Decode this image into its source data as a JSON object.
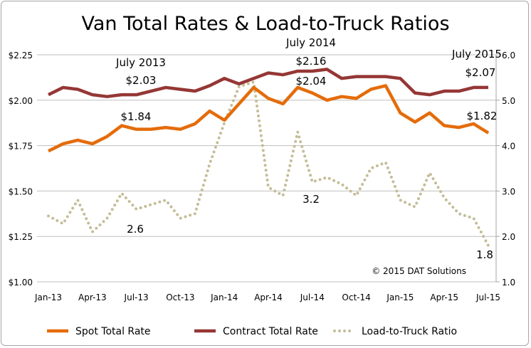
{
  "chart_data": {
    "type": "line",
    "title": "Van Total Rates & Load-to-Truck Ratios",
    "x": [
      "Jan-13",
      "Feb-13",
      "Mar-13",
      "Apr-13",
      "May-13",
      "Jun-13",
      "Jul-13",
      "Aug-13",
      "Sep-13",
      "Oct-13",
      "Nov-13",
      "Dec-13",
      "Jan-14",
      "Feb-14",
      "Mar-14",
      "Apr-14",
      "May-14",
      "Jun-14",
      "Jul-14",
      "Aug-14",
      "Sep-14",
      "Oct-14",
      "Nov-14",
      "Dec-14",
      "Jan-15",
      "Feb-15",
      "Mar-15",
      "Apr-15",
      "May-15",
      "Jun-15",
      "Jul-15"
    ],
    "x_tick_labels": [
      "Jan-13",
      "Apr-13",
      "Jul-13",
      "Oct-13",
      "Jan-14",
      "Apr-14",
      "Jul-14",
      "Oct-14",
      "Jan-15",
      "Apr-15",
      "Jul-15"
    ],
    "y_left": {
      "ylim": [
        1.0,
        2.25
      ],
      "tick_labels": [
        "$1.00",
        "$1.25",
        "$1.50",
        "$1.75",
        "$2.00",
        "$2.25"
      ]
    },
    "y_right": {
      "ylim": [
        1.0,
        6.0
      ],
      "tick_labels": [
        "1.0",
        "2.0",
        "3.0",
        "4.0",
        "5.0",
        "6.0"
      ]
    },
    "grid": true,
    "legend_position": "bottom",
    "series": [
      {
        "name": "Spot Total Rate",
        "axis": "left",
        "color": "#E46C0A",
        "style": "solid",
        "values": [
          1.72,
          1.76,
          1.78,
          1.76,
          1.8,
          1.86,
          1.84,
          1.84,
          1.85,
          1.84,
          1.87,
          1.94,
          1.89,
          1.98,
          2.07,
          2.01,
          1.98,
          2.07,
          2.04,
          2.0,
          2.02,
          2.01,
          2.06,
          2.08,
          1.93,
          1.88,
          1.93,
          1.86,
          1.85,
          1.87,
          1.82
        ]
      },
      {
        "name": "Contract Total Rate",
        "axis": "left",
        "color": "#953735",
        "style": "solid",
        "values": [
          2.03,
          2.07,
          2.06,
          2.03,
          2.02,
          2.03,
          2.03,
          2.05,
          2.07,
          2.06,
          2.05,
          2.08,
          2.12,
          2.09,
          2.12,
          2.15,
          2.14,
          2.16,
          2.16,
          2.17,
          2.12,
          2.13,
          2.13,
          2.13,
          2.12,
          2.04,
          2.03,
          2.05,
          2.05,
          2.07,
          2.07
        ]
      },
      {
        "name": "Load-to-Truck Ratio",
        "axis": "right",
        "color": "#C4BD97",
        "style": "dotted",
        "values": [
          2.45,
          2.28,
          2.8,
          2.1,
          2.4,
          2.95,
          2.6,
          2.7,
          2.8,
          2.4,
          2.5,
          3.6,
          4.5,
          5.3,
          5.4,
          3.08,
          2.9,
          4.3,
          3.2,
          3.3,
          3.15,
          2.9,
          3.5,
          3.63,
          2.8,
          2.65,
          3.4,
          2.85,
          2.5,
          2.4,
          1.8
        ]
      }
    ],
    "annotations": [
      {
        "id": "a1",
        "text": "July 2013"
      },
      {
        "id": "a2",
        "text": "$2.03"
      },
      {
        "id": "a3",
        "text": "$1.84"
      },
      {
        "id": "a4",
        "text": "2.6"
      },
      {
        "id": "a5",
        "text": "July 2014"
      },
      {
        "id": "a6",
        "text": "$2.16"
      },
      {
        "id": "a7",
        "text": "$2.04"
      },
      {
        "id": "a8",
        "text": "3.2"
      },
      {
        "id": "a9",
        "text": "July 2015"
      },
      {
        "id": "a10",
        "text": "$2.07"
      },
      {
        "id": "a11",
        "text": "$1.82"
      },
      {
        "id": "a12",
        "text": "1.8"
      },
      {
        "id": "a13",
        "text": "© 2015 DAT Solutions"
      }
    ]
  }
}
